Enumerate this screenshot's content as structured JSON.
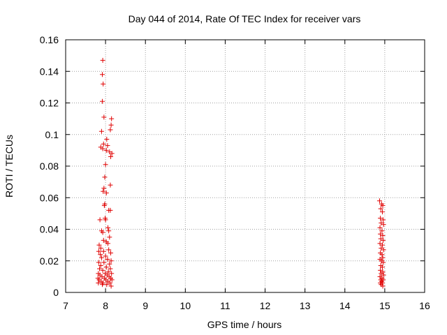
{
  "chart_data": {
    "type": "scatter",
    "title": "Day 044 of 2014, Rate Of TEC Index for receiver vars",
    "xlabel": "GPS time / hours",
    "ylabel": "ROTI / TECUs",
    "xlim": [
      7,
      16
    ],
    "ylim": [
      0,
      0.16
    ],
    "x_ticks": [
      7,
      8,
      9,
      10,
      11,
      12,
      13,
      14,
      15,
      16
    ],
    "x_tick_labels": [
      "7",
      "8",
      "9",
      "10",
      "11",
      "12",
      "13",
      "14",
      "15",
      "16"
    ],
    "y_ticks": [
      0,
      0.02,
      0.04,
      0.06,
      0.08,
      0.1,
      0.12,
      0.14,
      0.16
    ],
    "y_tick_labels": [
      "0",
      "0.02",
      "0.04",
      "0.06",
      "0.08",
      "0.1",
      "0.12",
      "0.14",
      "0.16"
    ],
    "grid": true,
    "marker": "+",
    "color": "#e00000",
    "series": [
      {
        "name": "ROTI",
        "points": [
          [
            7.93,
            0.147
          ],
          [
            7.92,
            0.138
          ],
          [
            7.94,
            0.132
          ],
          [
            7.92,
            0.121
          ],
          [
            7.96,
            0.111
          ],
          [
            7.9,
            0.102
          ],
          [
            8.15,
            0.11
          ],
          [
            8.14,
            0.106
          ],
          [
            8.12,
            0.103
          ],
          [
            7.95,
            0.094
          ],
          [
            7.88,
            0.092
          ],
          [
            7.93,
            0.091
          ],
          [
            8.03,
            0.097
          ],
          [
            8.05,
            0.093
          ],
          [
            8.02,
            0.09
          ],
          [
            8.1,
            0.089
          ],
          [
            8.16,
            0.088
          ],
          [
            8.13,
            0.086
          ],
          [
            8.0,
            0.081
          ],
          [
            7.98,
            0.073
          ],
          [
            8.12,
            0.068
          ],
          [
            7.96,
            0.066
          ],
          [
            7.94,
            0.064
          ],
          [
            8.02,
            0.063
          ],
          [
            7.98,
            0.056
          ],
          [
            7.97,
            0.055
          ],
          [
            8.08,
            0.052
          ],
          [
            8.12,
            0.052
          ],
          [
            7.99,
            0.047
          ],
          [
            8.0,
            0.046
          ],
          [
            7.86,
            0.046
          ],
          [
            8.06,
            0.041
          ],
          [
            8.08,
            0.039
          ],
          [
            7.9,
            0.039
          ],
          [
            7.93,
            0.038
          ],
          [
            8.1,
            0.035
          ],
          [
            7.95,
            0.033
          ],
          [
            8.02,
            0.032
          ],
          [
            8.06,
            0.031
          ],
          [
            7.84,
            0.03
          ],
          [
            7.88,
            0.028
          ],
          [
            8.08,
            0.027
          ],
          [
            7.83,
            0.026
          ],
          [
            7.95,
            0.026
          ],
          [
            8.13,
            0.025
          ],
          [
            7.87,
            0.024
          ],
          [
            8.0,
            0.023
          ],
          [
            7.9,
            0.022
          ],
          [
            8.05,
            0.021
          ],
          [
            8.14,
            0.02
          ],
          [
            7.83,
            0.019
          ],
          [
            7.96,
            0.019
          ],
          [
            8.1,
            0.018
          ],
          [
            7.88,
            0.017
          ],
          [
            8.02,
            0.016
          ],
          [
            7.85,
            0.015
          ],
          [
            8.12,
            0.015
          ],
          [
            7.93,
            0.014
          ],
          [
            8.07,
            0.013
          ],
          [
            7.82,
            0.012
          ],
          [
            7.99,
            0.012
          ],
          [
            8.15,
            0.012
          ],
          [
            7.86,
            0.011
          ],
          [
            8.04,
            0.011
          ],
          [
            7.91,
            0.01
          ],
          [
            8.09,
            0.01
          ],
          [
            7.81,
            0.009
          ],
          [
            7.97,
            0.009
          ],
          [
            8.13,
            0.009
          ],
          [
            7.84,
            0.008
          ],
          [
            8.01,
            0.008
          ],
          [
            8.16,
            0.008
          ],
          [
            7.89,
            0.007
          ],
          [
            8.06,
            0.007
          ],
          [
            7.94,
            0.006
          ],
          [
            8.11,
            0.006
          ],
          [
            7.82,
            0.006
          ],
          [
            8.03,
            0.005
          ],
          [
            7.92,
            0.005
          ],
          [
            8.14,
            0.004
          ],
          [
            14.87,
            0.058
          ],
          [
            14.92,
            0.056
          ],
          [
            14.95,
            0.055
          ],
          [
            14.9,
            0.053
          ],
          [
            14.94,
            0.051
          ],
          [
            14.89,
            0.047
          ],
          [
            14.96,
            0.046
          ],
          [
            14.91,
            0.044
          ],
          [
            14.97,
            0.043
          ],
          [
            14.88,
            0.041
          ],
          [
            14.93,
            0.039
          ],
          [
            14.89,
            0.037
          ],
          [
            14.95,
            0.036
          ],
          [
            14.9,
            0.034
          ],
          [
            14.96,
            0.033
          ],
          [
            14.88,
            0.031
          ],
          [
            14.94,
            0.03
          ],
          [
            14.91,
            0.028
          ],
          [
            14.97,
            0.027
          ],
          [
            14.89,
            0.025
          ],
          [
            14.93,
            0.024
          ],
          [
            14.95,
            0.022
          ],
          [
            14.88,
            0.021
          ],
          [
            14.92,
            0.02
          ],
          [
            14.96,
            0.019
          ],
          [
            14.9,
            0.017
          ],
          [
            14.94,
            0.016
          ],
          [
            14.89,
            0.014
          ],
          [
            14.95,
            0.013
          ],
          [
            14.91,
            0.012
          ],
          [
            14.97,
            0.011
          ],
          [
            14.88,
            0.01
          ],
          [
            14.93,
            0.009
          ],
          [
            14.9,
            0.008
          ],
          [
            14.96,
            0.008
          ],
          [
            14.92,
            0.007
          ],
          [
            14.89,
            0.006
          ],
          [
            14.94,
            0.006
          ],
          [
            14.91,
            0.005
          ],
          [
            14.95,
            0.004
          ]
        ]
      }
    ]
  }
}
